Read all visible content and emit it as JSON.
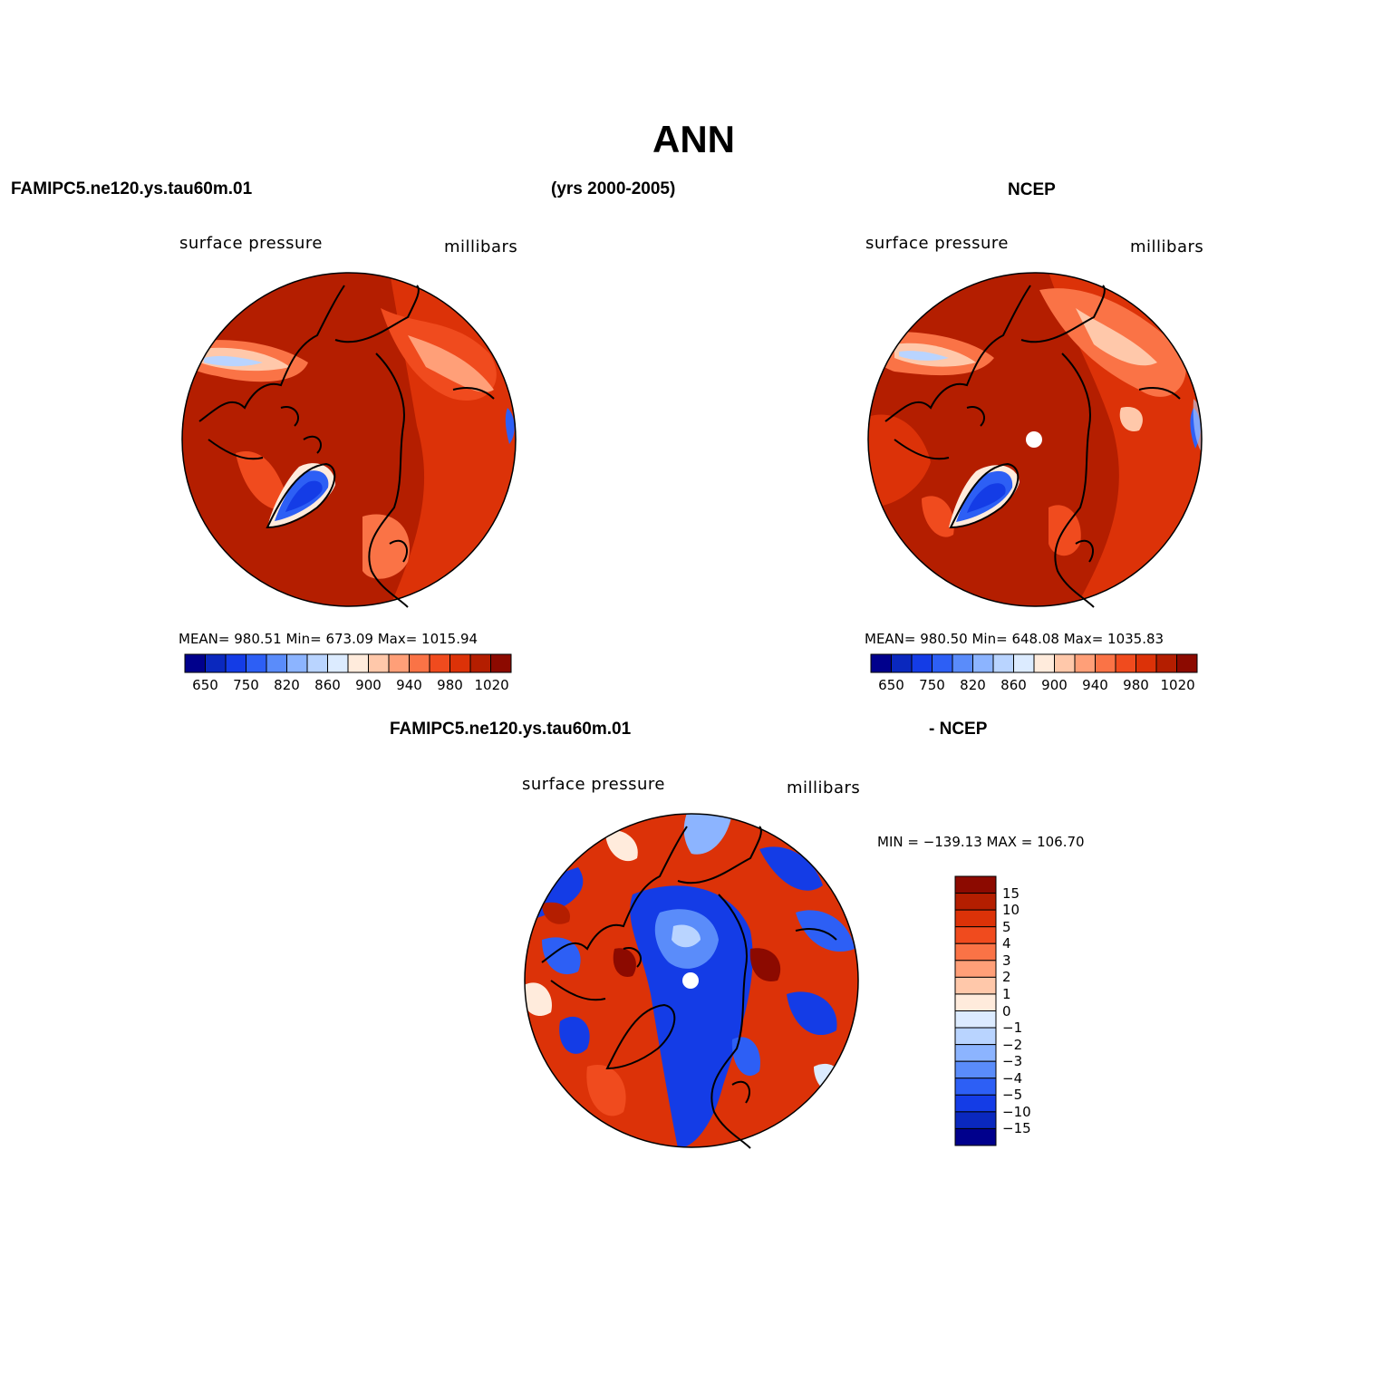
{
  "title": "ANN",
  "header": {
    "case_name": "FAMIPC5.ne120.ys.tau60m.01",
    "years": "(yrs 2000-2005)",
    "ref_name": "NCEP",
    "diff_case": "FAMIPC5.ne120.ys.tau60m.01",
    "diff_ref": "- NCEP"
  },
  "panels": {
    "model": {
      "variable": "surface pressure",
      "units": "millibars",
      "stats": "MEAN= 980.51   Min= 673.09   Max= 1015.94"
    },
    "obs": {
      "variable": "surface pressure",
      "units": "millibars",
      "stats": "MEAN= 980.50   Min= 648.08   Max= 1035.83"
    },
    "diff": {
      "variable": "surface pressure",
      "units": "millibars",
      "stats": "MIN = −139.13 MAX = 106.70"
    }
  },
  "colorbars": {
    "main_labels": [
      "650",
      "750",
      "820",
      "860",
      "900",
      "940",
      "980",
      "1020"
    ],
    "main_colors": [
      "#00008c",
      "#0a28be",
      "#143ce6",
      "#2d5ff5",
      "#5a8cfa",
      "#8cb4ff",
      "#b9d4ff",
      "#dcebff",
      "#ffebdc",
      "#ffc8aa",
      "#ff9f78",
      "#fa7346",
      "#f04b1e",
      "#dc3208",
      "#b41e00",
      "#8c0a00"
    ],
    "diff_labels": [
      "15",
      "10",
      "5",
      "4",
      "3",
      "2",
      "1",
      "0",
      "−1",
      "−2",
      "−3",
      "−4",
      "−5",
      "−10",
      "−15"
    ],
    "diff_colors": [
      "#8c0a00",
      "#b41e00",
      "#dc3208",
      "#f04b1e",
      "#fa7346",
      "#ff9f78",
      "#ffc8aa",
      "#ffebdc",
      "#dcebff",
      "#b9d4ff",
      "#8cb4ff",
      "#5a8cfa",
      "#2d5ff5",
      "#143ce6",
      "#0a28be",
      "#00008c"
    ]
  }
}
